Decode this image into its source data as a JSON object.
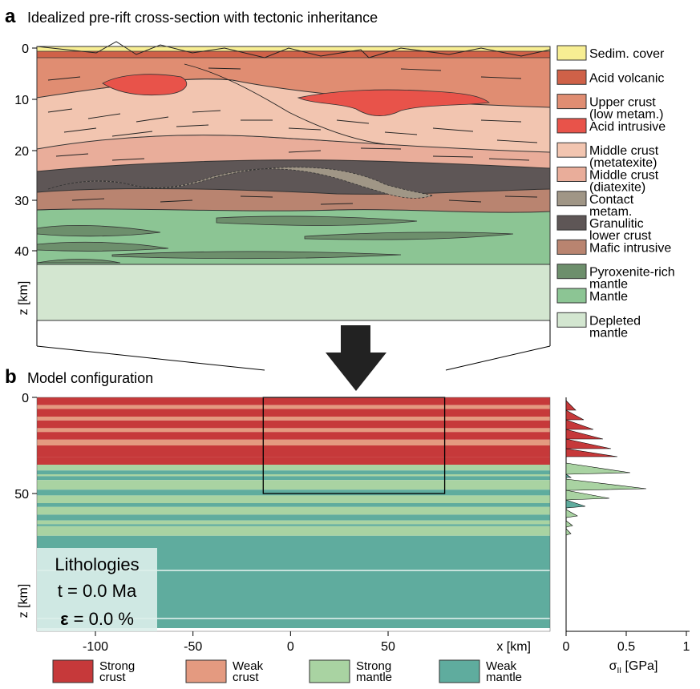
{
  "panel_a": {
    "letter": "a",
    "title": "Idealized pre-rift cross-section with tectonic inheritance",
    "y_axis_label": "z [km]",
    "y_ticks": [
      "0",
      "10",
      "20",
      "30",
      "40"
    ],
    "legend": [
      {
        "lines": [
          "Sedim. cover"
        ],
        "color": "#f7ee93"
      },
      {
        "lines": [
          "Acid volcanic"
        ],
        "color": "#cf6148"
      },
      {
        "lines": [
          "Upper crust",
          "(low metam.)"
        ],
        "color": "#e08d72"
      },
      {
        "lines": [
          "Acid intrusive"
        ],
        "color": "#e8534a"
      },
      {
        "lines": [
          "Middle crust",
          "(metatexite)"
        ],
        "color": "#f2c5b0"
      },
      {
        "lines": [
          "Middle crust",
          "(diatexite)"
        ],
        "color": "#e9ad9a"
      },
      {
        "lines": [
          "Contact",
          "metam."
        ],
        "color": "#a09686"
      },
      {
        "lines": [
          "Granulitic",
          "lower crust"
        ],
        "color": "#5e5656"
      },
      {
        "lines": [
          "Mafic intrusive"
        ],
        "color": "#b98470"
      },
      {
        "lines": [
          "Pyroxenite-rich",
          "mantle"
        ],
        "color": "#6d8f6c"
      },
      {
        "lines": [
          "Mantle"
        ],
        "color": "#8cc594"
      },
      {
        "lines": [
          "Depleted",
          "mantle"
        ],
        "color": "#d3e6d0"
      }
    ]
  },
  "panel_b": {
    "letter": "b",
    "title": "Model configuration",
    "y_axis_label": "z [km]",
    "y_ticks": [
      {
        "value": 0,
        "label": "0"
      },
      {
        "value": 50,
        "label": "50"
      }
    ],
    "x_ticks": [
      {
        "value": -100,
        "label": "-100"
      },
      {
        "value": -50,
        "label": "-50"
      },
      {
        "value": 0,
        "label": "0"
      },
      {
        "value": 50,
        "label": "50"
      }
    ],
    "x_unit_label": "x [km]",
    "info_box": {
      "line1": "Lithologies",
      "line2": "t = 0.0 Ma",
      "epsilon_symbol": "ε",
      "line3": " = 0.0 %"
    },
    "legend": [
      {
        "lines": [
          "Strong",
          "crust"
        ],
        "color": "#c6393a"
      },
      {
        "lines": [
          "Weak",
          "crust"
        ],
        "color": "#e49a80"
      },
      {
        "lines": [
          "Strong",
          "mantle"
        ],
        "color": "#a9d3a2"
      },
      {
        "lines": [
          "Weak",
          "mantle"
        ],
        "color": "#5fac9e"
      }
    ],
    "layers": [
      {
        "top": 0,
        "bottom": 4,
        "type": "strong_crust"
      },
      {
        "top": 4,
        "bottom": 6,
        "type": "weak_crust"
      },
      {
        "top": 6,
        "bottom": 10,
        "type": "strong_crust"
      },
      {
        "top": 10,
        "bottom": 12,
        "type": "weak_crust"
      },
      {
        "top": 12,
        "bottom": 16,
        "type": "strong_crust"
      },
      {
        "top": 16,
        "bottom": 18,
        "type": "weak_crust"
      },
      {
        "top": 18,
        "bottom": 22,
        "type": "strong_crust"
      },
      {
        "top": 22,
        "bottom": 25,
        "type": "weak_crust"
      },
      {
        "top": 25,
        "bottom": 31,
        "type": "strong_crust"
      },
      {
        "top": 31,
        "bottom": 35,
        "type": "strong_crust"
      },
      {
        "top": 35,
        "bottom": 38,
        "type": "strong_mantle"
      },
      {
        "top": 38,
        "bottom": 40,
        "type": "weak_mantle"
      },
      {
        "top": 40,
        "bottom": 41,
        "type": "strong_mantle"
      },
      {
        "top": 41,
        "bottom": 43,
        "type": "weak_mantle"
      },
      {
        "top": 43,
        "bottom": 48,
        "type": "strong_mantle"
      },
      {
        "top": 48,
        "bottom": 51,
        "type": "weak_mantle"
      },
      {
        "top": 51,
        "bottom": 55,
        "type": "strong_mantle"
      },
      {
        "top": 55,
        "bottom": 57,
        "type": "weak_mantle"
      },
      {
        "top": 57,
        "bottom": 61,
        "type": "strong_mantle"
      },
      {
        "top": 61,
        "bottom": 64,
        "type": "weak_mantle"
      },
      {
        "top": 64,
        "bottom": 66,
        "type": "strong_mantle"
      },
      {
        "top": 66,
        "bottom": 67,
        "type": "weak_mantle"
      },
      {
        "top": 67,
        "bottom": 72,
        "type": "strong_mantle"
      },
      {
        "top": 72,
        "bottom": 120,
        "type": "weak_mantle"
      }
    ],
    "model_box": {
      "x": [
        -14,
        79
      ],
      "z": [
        0,
        50
      ]
    }
  },
  "stress_panel": {
    "x_ticks": [
      {
        "value": 0,
        "label": "0"
      },
      {
        "value": 0.5,
        "label": "0.5"
      },
      {
        "value": 1,
        "label": "1"
      }
    ],
    "x_label_main": "σ",
    "x_label_sub": "II",
    "x_label_unit": " [GPa]"
  }
}
